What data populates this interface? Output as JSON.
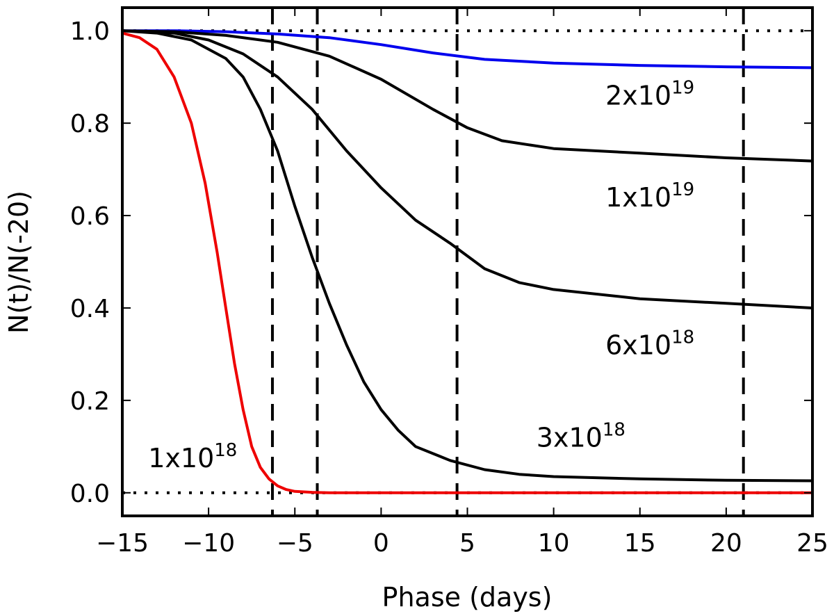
{
  "chart_data": {
    "type": "line",
    "xlabel": "Phase (days)",
    "ylabel": "N(t)/N(-20)",
    "xlim": [
      -15,
      25
    ],
    "ylim": [
      -0.05,
      1.05
    ],
    "xticks": [
      -15,
      -10,
      -5,
      0,
      5,
      10,
      15,
      20,
      25
    ],
    "xtick_labels": [
      "−15",
      "−10",
      "−5",
      "0",
      "5",
      "10",
      "15",
      "20",
      "25"
    ],
    "yticks": [
      0.0,
      0.2,
      0.4,
      0.6,
      0.8,
      1.0
    ],
    "ytick_labels": [
      "0.0",
      "0.2",
      "0.4",
      "0.6",
      "0.8",
      "1.0"
    ],
    "reference_lines": {
      "horizontal_dotted": [
        0.0,
        1.0
      ],
      "vertical_dashed": [
        -6.3,
        -3.7,
        4.4,
        21.0
      ]
    },
    "colors": {
      "red": "#ee0000",
      "blue": "#0000ee",
      "black": "#000000"
    },
    "series": [
      {
        "name": "2x10^19",
        "label_base": "2x10",
        "label_exp": "19",
        "color": "#0000ee",
        "label_pos": [
          13,
          0.84
        ],
        "points": [
          [
            -15,
            1.0
          ],
          [
            -12,
            1.0
          ],
          [
            -9,
            0.998
          ],
          [
            -6,
            0.993
          ],
          [
            -3,
            0.985
          ],
          [
            0,
            0.97
          ],
          [
            3,
            0.952
          ],
          [
            6,
            0.938
          ],
          [
            10,
            0.93
          ],
          [
            15,
            0.925
          ],
          [
            20,
            0.922
          ],
          [
            25,
            0.92
          ]
        ]
      },
      {
        "name": "1x10^19",
        "label_base": "1x10",
        "label_exp": "19",
        "color": "#000000",
        "label_pos": [
          13,
          0.62
        ],
        "points": [
          [
            -15,
            1.0
          ],
          [
            -12,
            0.998
          ],
          [
            -9,
            0.99
          ],
          [
            -6,
            0.975
          ],
          [
            -3,
            0.945
          ],
          [
            0,
            0.895
          ],
          [
            3,
            0.83
          ],
          [
            5,
            0.79
          ],
          [
            7,
            0.762
          ],
          [
            10,
            0.745
          ],
          [
            15,
            0.735
          ],
          [
            20,
            0.725
          ],
          [
            25,
            0.718
          ]
        ]
      },
      {
        "name": "6x10^18",
        "label_base": "6x10",
        "label_exp": "18",
        "color": "#000000",
        "label_pos": [
          13,
          0.3
        ],
        "points": [
          [
            -15,
            1.0
          ],
          [
            -12,
            0.995
          ],
          [
            -10,
            0.98
          ],
          [
            -8,
            0.95
          ],
          [
            -6,
            0.9
          ],
          [
            -4,
            0.83
          ],
          [
            -2,
            0.74
          ],
          [
            0,
            0.66
          ],
          [
            2,
            0.59
          ],
          [
            4,
            0.54
          ],
          [
            6,
            0.485
          ],
          [
            8,
            0.455
          ],
          [
            10,
            0.44
          ],
          [
            15,
            0.42
          ],
          [
            20,
            0.41
          ],
          [
            25,
            0.4
          ]
        ]
      },
      {
        "name": "3x10^18",
        "label_base": "3x10",
        "label_exp": "18",
        "color": "#000000",
        "label_pos": [
          9,
          0.1
        ],
        "points": [
          [
            -15,
            1.0
          ],
          [
            -13,
            0.995
          ],
          [
            -11,
            0.98
          ],
          [
            -9,
            0.94
          ],
          [
            -8,
            0.9
          ],
          [
            -7,
            0.83
          ],
          [
            -6,
            0.74
          ],
          [
            -5,
            0.62
          ],
          [
            -4,
            0.51
          ],
          [
            -3,
            0.41
          ],
          [
            -2,
            0.32
          ],
          [
            -1,
            0.24
          ],
          [
            0,
            0.18
          ],
          [
            1,
            0.135
          ],
          [
            2,
            0.1
          ],
          [
            4,
            0.07
          ],
          [
            6,
            0.05
          ],
          [
            8,
            0.04
          ],
          [
            10,
            0.035
          ],
          [
            15,
            0.03
          ],
          [
            20,
            0.027
          ],
          [
            25,
            0.026
          ]
        ]
      },
      {
        "name": "1x10^18",
        "label_base": "1x10",
        "label_exp": "18",
        "color": "#ee0000",
        "label_pos": [
          -13.5,
          0.055
        ],
        "points": [
          [
            -15,
            0.995
          ],
          [
            -14,
            0.985
          ],
          [
            -13,
            0.96
          ],
          [
            -12,
            0.9
          ],
          [
            -11,
            0.8
          ],
          [
            -10.2,
            0.67
          ],
          [
            -9.5,
            0.52
          ],
          [
            -9,
            0.4
          ],
          [
            -8.5,
            0.28
          ],
          [
            -8,
            0.18
          ],
          [
            -7.5,
            0.1
          ],
          [
            -7,
            0.055
          ],
          [
            -6.5,
            0.03
          ],
          [
            -6,
            0.015
          ],
          [
            -5.5,
            0.007
          ],
          [
            -5,
            0.003
          ],
          [
            -4,
            0.001
          ],
          [
            -3,
            0.0
          ],
          [
            25,
            0.0
          ]
        ]
      }
    ]
  }
}
